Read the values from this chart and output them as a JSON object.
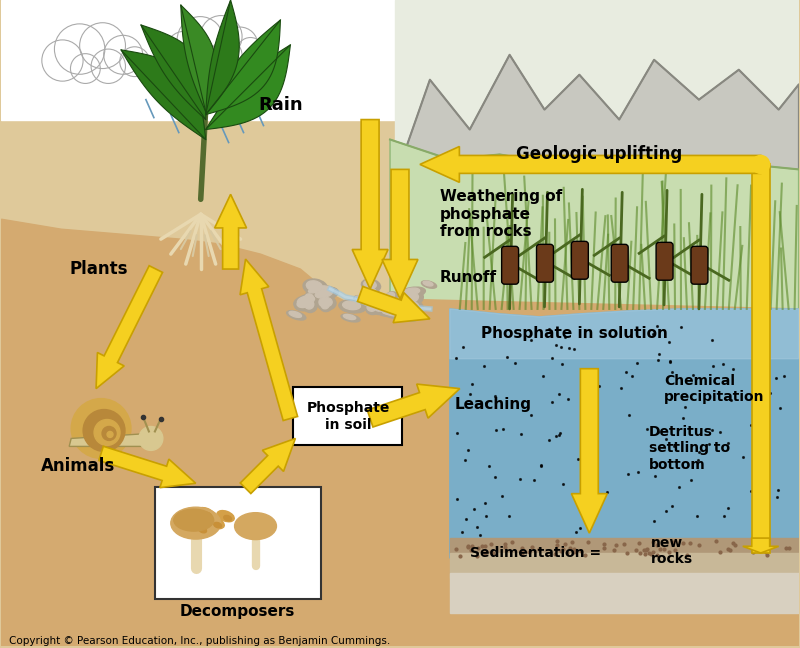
{
  "copyright": "Copyright © Pearson Education, Inc., publishing as Benjamin Cummings.",
  "bg_color": "#dfc99a",
  "sky_color": "#ffffff",
  "mountain_color": "#c8c8c0",
  "mountain_line_color": "#888880",
  "water_color": "#a8cce0",
  "water_deep_color": "#7aaec8",
  "wetland_color": "#c8ddb0",
  "ground_color": "#d4aa70",
  "sediment_color": "#b89060",
  "rock_bottom_color": "#d8d0c0",
  "arrow_color": "#f5d020",
  "arrow_edge_color": "#c8a000",
  "labels": {
    "rain": "Rain",
    "plants": "Plants",
    "animals": "Animals",
    "decomposers": "Decomposers",
    "phosphate_soil": "Phosphate\nin soil",
    "leaching": "Leaching",
    "runoff": "Runoff",
    "weathering": "Weathering of\nphosphate\nfrom rocks",
    "geologic": "Geologic uplifting",
    "phosphate_solution": "Phosphate in solution",
    "chemical_precip": "Chemical\nprecipitation",
    "detritus": "Detritus\nsettling to\nbottom",
    "sedimentation": "Sedimentation = ",
    "new_rocks": "new\nrocks"
  }
}
